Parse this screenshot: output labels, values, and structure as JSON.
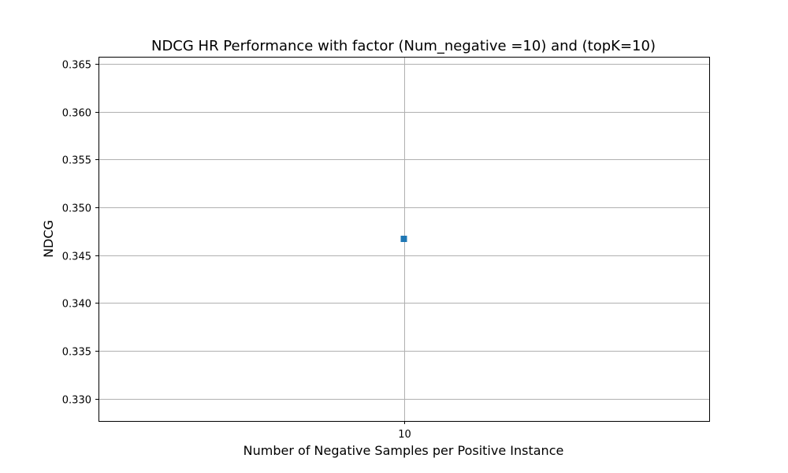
{
  "chart_data": {
    "type": "scatter",
    "title": "NDCG HR Performance with factor (Num_negative =10) and (topK=10)",
    "xlabel": "Number of Negative Samples per Positive Instance",
    "ylabel": "NDCG",
    "x_ticks": [
      10
    ],
    "y_ticks": [
      0.33,
      0.335,
      0.34,
      0.345,
      0.35,
      0.355,
      0.36,
      0.365
    ],
    "y_tick_labels": [
      "0.330",
      "0.335",
      "0.340",
      "0.345",
      "0.350",
      "0.355",
      "0.360",
      "0.365"
    ],
    "xlim": [
      9.95,
      10.05
    ],
    "ylim": [
      0.32765,
      0.36575
    ],
    "grid": true,
    "series": [
      {
        "x": [
          10
        ],
        "y": [
          0.3467
        ],
        "marker": "square",
        "color": "#1f77b4"
      }
    ]
  }
}
